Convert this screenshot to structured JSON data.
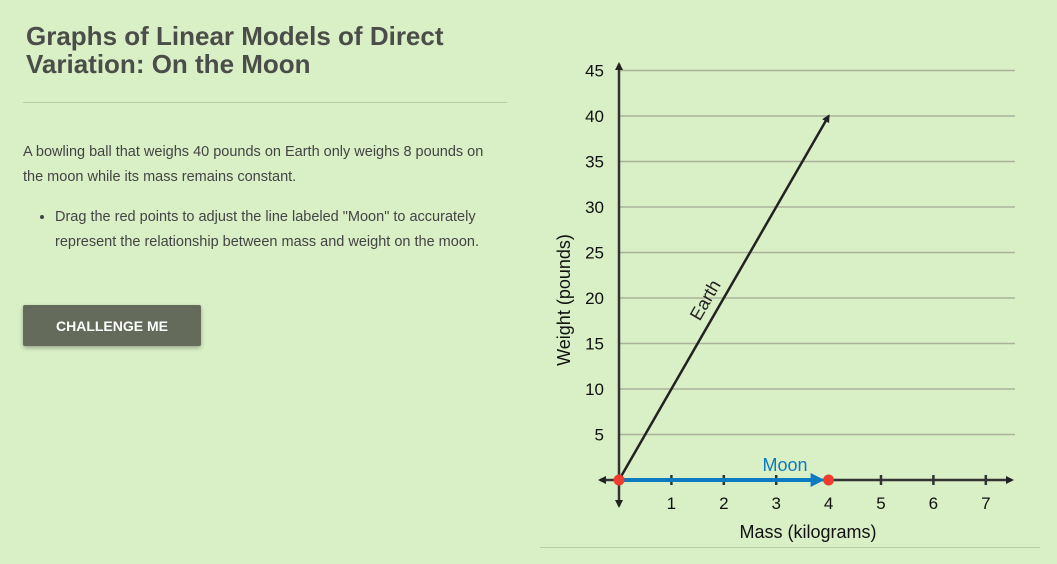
{
  "header": {
    "title": "Graphs of Linear Models of Direct Variation: On the Moon"
  },
  "content": {
    "paragraph": "A bowling ball that weighs 40 pounds on Earth only weighs 8 pounds on the moon while its mass remains constant.",
    "bullets": [
      "Drag the red points to adjust the line labeled \"Moon\" to accurately represent the relationship between mass and weight on the moon."
    ]
  },
  "buttons": {
    "challenge": "CHALLENGE ME"
  },
  "chart_data": {
    "type": "line",
    "xlabel": "Mass (kilograms)",
    "ylabel": "Weight (pounds)",
    "xlim": [
      0,
      7
    ],
    "ylim": [
      0,
      45
    ],
    "xticks": [
      "1",
      "2",
      "3",
      "4",
      "5",
      "6",
      "7"
    ],
    "yticks": [
      "5",
      "10",
      "15",
      "20",
      "25",
      "30",
      "35",
      "40",
      "45"
    ],
    "grid": "horizontal",
    "series": [
      {
        "name": "Earth",
        "color": "#222222",
        "points": [
          [
            0,
            0
          ],
          [
            4,
            40
          ]
        ]
      },
      {
        "name": "Moon",
        "color": "#0b7bc1",
        "points": [
          [
            0,
            0
          ],
          [
            4,
            0
          ]
        ],
        "draggable_point_color": "#f03c2e"
      }
    ]
  }
}
